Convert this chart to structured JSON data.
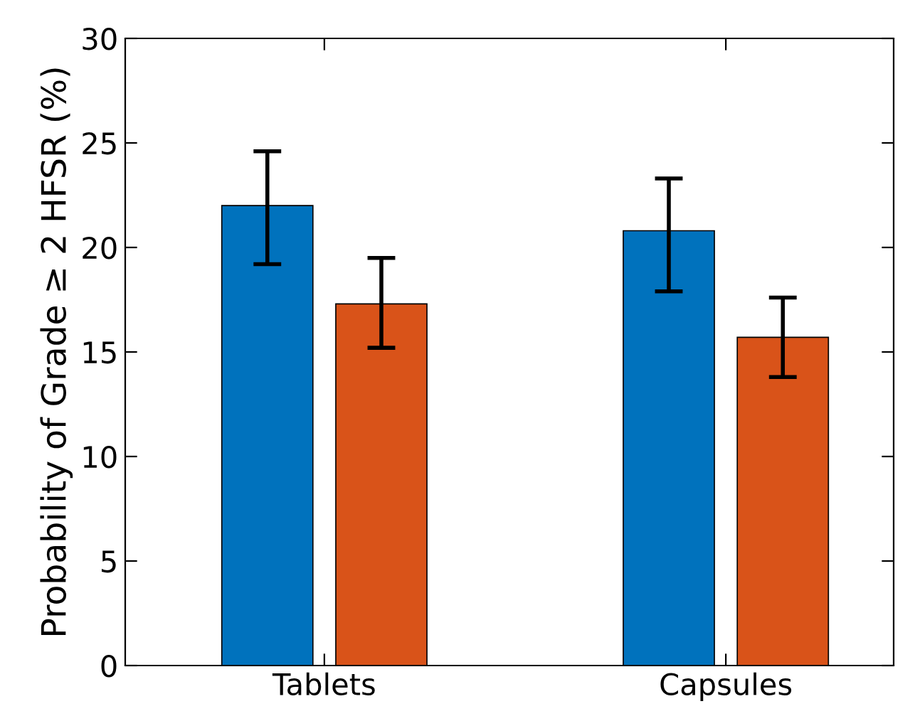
{
  "chart_data": {
    "type": "bar",
    "ylabel": "Probability of Grade ≥ 2 HFSR (%)",
    "categories": [
      "Tablets",
      "Capsules"
    ],
    "series": [
      {
        "color": "#0072bd",
        "values": [
          22.0,
          20.8
        ],
        "errors": [
          [
            19.2,
            24.6
          ],
          [
            17.9,
            23.3
          ]
        ]
      },
      {
        "color": "#d95319",
        "values": [
          17.3,
          15.7
        ],
        "errors": [
          [
            15.2,
            19.5
          ],
          [
            13.8,
            17.6
          ]
        ]
      }
    ],
    "ylim": [
      0,
      30
    ],
    "yticks": [
      0,
      5,
      10,
      15,
      20,
      25,
      30
    ],
    "grid": false,
    "legend": false
  }
}
